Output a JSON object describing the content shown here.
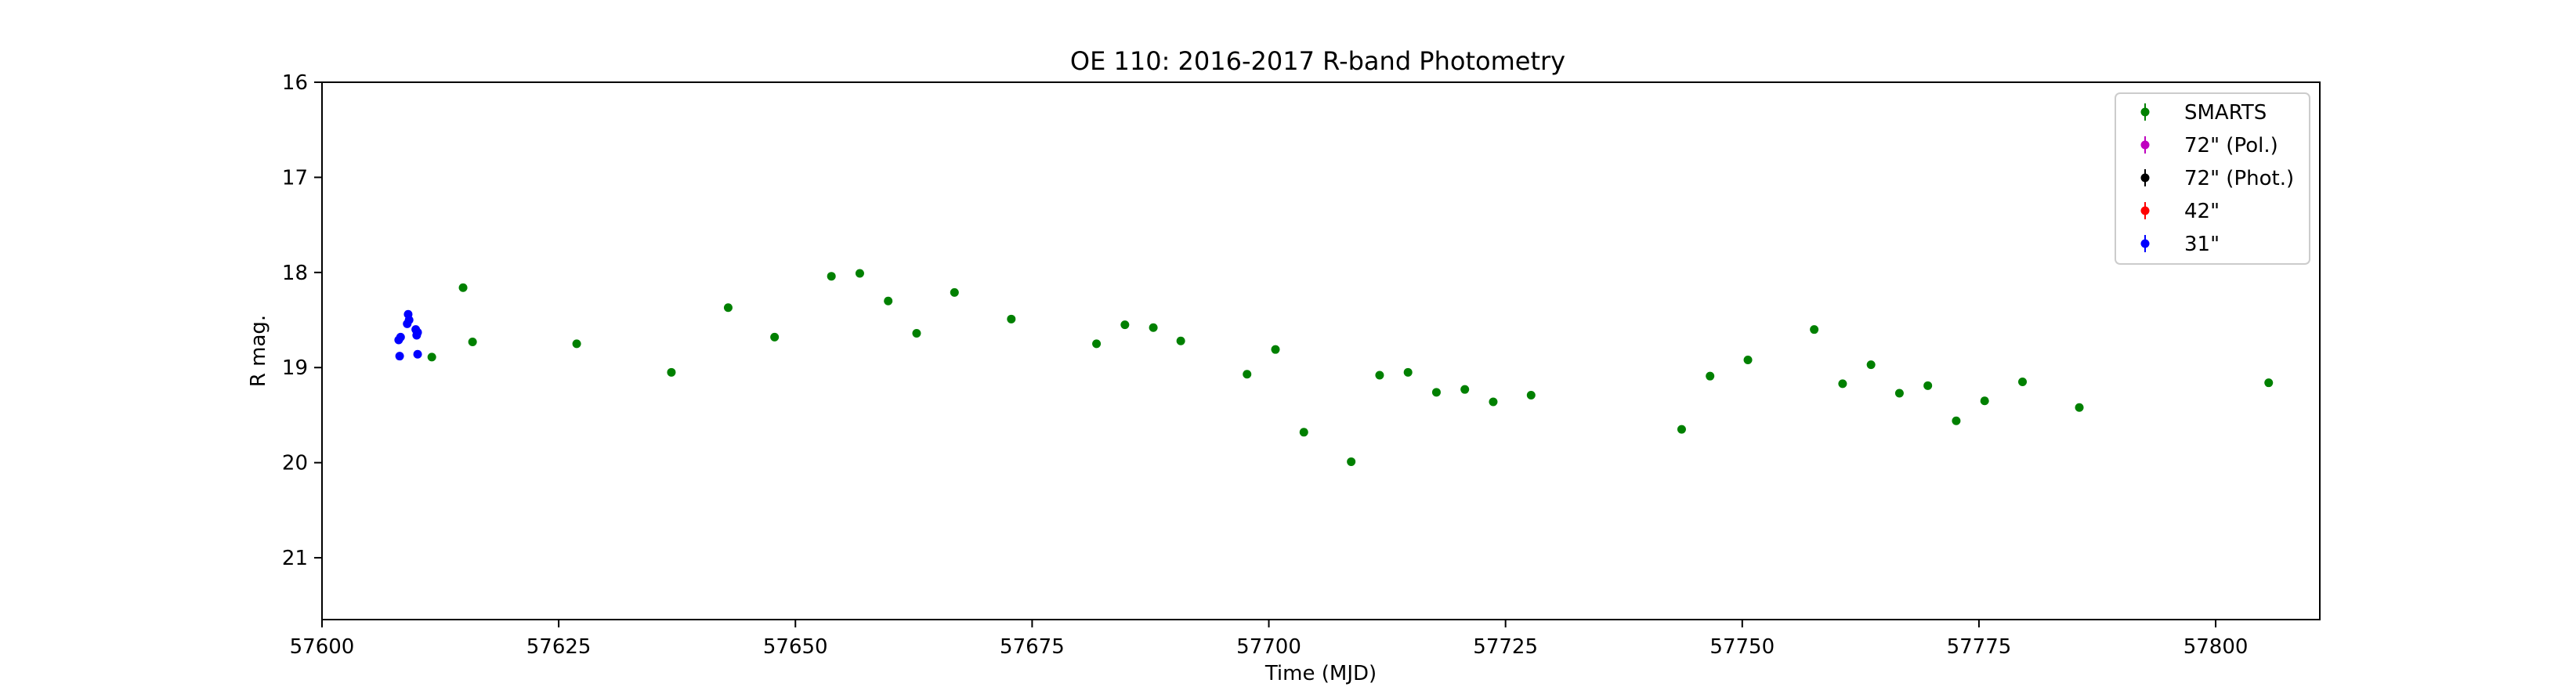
{
  "chart_data": {
    "type": "scatter",
    "title": "OE 110: 2016-2017 R-band Photometry",
    "xlabel": "Time (MJD)",
    "ylabel": "R mag.",
    "xlim": [
      57600,
      57811
    ],
    "ylim": [
      16,
      21.65
    ],
    "y_inverted": true,
    "x_ticks": [
      57600,
      57625,
      57650,
      57675,
      57700,
      57725,
      57750,
      57775,
      57800
    ],
    "y_ticks": [
      16,
      17,
      18,
      19,
      20,
      21
    ],
    "grid": false,
    "legend_position": "top-right",
    "series": [
      {
        "name": "SMARTS",
        "color": "#008000",
        "points": [
          {
            "x": 57611.6,
            "y": 18.89
          },
          {
            "x": 57614.9,
            "y": 18.16
          },
          {
            "x": 57615.9,
            "y": 18.73
          },
          {
            "x": 57626.9,
            "y": 18.75
          },
          {
            "x": 57636.9,
            "y": 19.05
          },
          {
            "x": 57642.9,
            "y": 18.37
          },
          {
            "x": 57647.8,
            "y": 18.68
          },
          {
            "x": 57653.8,
            "y": 18.04
          },
          {
            "x": 57656.8,
            "y": 18.01
          },
          {
            "x": 57659.8,
            "y": 18.3
          },
          {
            "x": 57662.8,
            "y": 18.64
          },
          {
            "x": 57666.8,
            "y": 18.21
          },
          {
            "x": 57672.8,
            "y": 18.49
          },
          {
            "x": 57681.8,
            "y": 18.75
          },
          {
            "x": 57684.8,
            "y": 18.55
          },
          {
            "x": 57687.8,
            "y": 18.58
          },
          {
            "x": 57690.7,
            "y": 18.72
          },
          {
            "x": 57697.7,
            "y": 19.07
          },
          {
            "x": 57700.7,
            "y": 18.81
          },
          {
            "x": 57703.7,
            "y": 19.68
          },
          {
            "x": 57708.7,
            "y": 19.99
          },
          {
            "x": 57711.7,
            "y": 19.08
          },
          {
            "x": 57714.7,
            "y": 19.05
          },
          {
            "x": 57717.7,
            "y": 19.26
          },
          {
            "x": 57720.7,
            "y": 19.23
          },
          {
            "x": 57723.7,
            "y": 19.36
          },
          {
            "x": 57727.7,
            "y": 19.29
          },
          {
            "x": 57743.6,
            "y": 19.65
          },
          {
            "x": 57746.6,
            "y": 19.09
          },
          {
            "x": 57750.6,
            "y": 18.92
          },
          {
            "x": 57757.6,
            "y": 18.6
          },
          {
            "x": 57760.6,
            "y": 19.17
          },
          {
            "x": 57763.6,
            "y": 18.97
          },
          {
            "x": 57766.6,
            "y": 19.27
          },
          {
            "x": 57769.6,
            "y": 19.19
          },
          {
            "x": 57772.6,
            "y": 19.56
          },
          {
            "x": 57775.6,
            "y": 19.35
          },
          {
            "x": 57779.6,
            "y": 19.15
          },
          {
            "x": 57785.6,
            "y": 19.42
          },
          {
            "x": 57805.6,
            "y": 19.16
          }
        ]
      },
      {
        "name": "72\" (Pol.)",
        "color": "#bf00bf",
        "points": []
      },
      {
        "name": "72\" (Phot.)",
        "color": "#000000",
        "points": []
      },
      {
        "name": "42\"",
        "color": "#ff0000",
        "points": []
      },
      {
        "name": "31\"",
        "color": "#0000ff",
        "points": [
          {
            "x": 57608.1,
            "y": 18.71
          },
          {
            "x": 57608.3,
            "y": 18.68
          },
          {
            "x": 57608.2,
            "y": 18.88
          },
          {
            "x": 57609.1,
            "y": 18.44
          },
          {
            "x": 57609.2,
            "y": 18.5
          },
          {
            "x": 57609.0,
            "y": 18.54
          },
          {
            "x": 57609.9,
            "y": 18.6
          },
          {
            "x": 57610.1,
            "y": 18.63
          },
          {
            "x": 57610.0,
            "y": 18.66
          },
          {
            "x": 57610.1,
            "y": 18.86
          }
        ]
      }
    ]
  }
}
